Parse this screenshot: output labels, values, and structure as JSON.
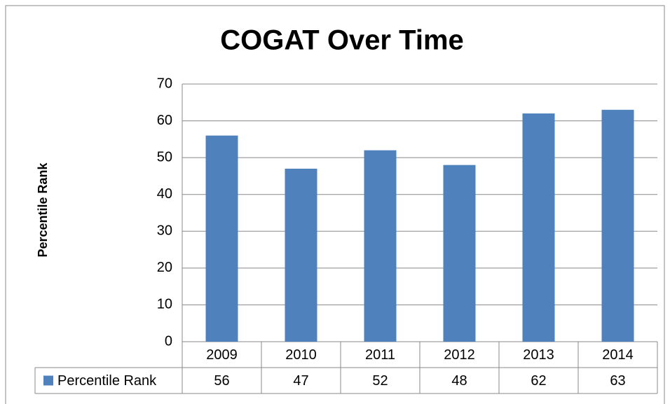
{
  "chart_data": {
    "type": "bar",
    "title": "COGAT Over Time",
    "y_label": "Percentile Rank",
    "categories": [
      "2009",
      "2010",
      "2011",
      "2012",
      "2013",
      "2014"
    ],
    "series": [
      {
        "name": "Percentile Rank",
        "color": "#4f81bd",
        "values": [
          56,
          47,
          52,
          48,
          62,
          63
        ]
      }
    ],
    "ylim": [
      0,
      70
    ],
    "yticks": [
      0,
      10,
      20,
      30,
      40,
      50,
      60,
      70
    ],
    "grid": true,
    "data_table": true
  }
}
